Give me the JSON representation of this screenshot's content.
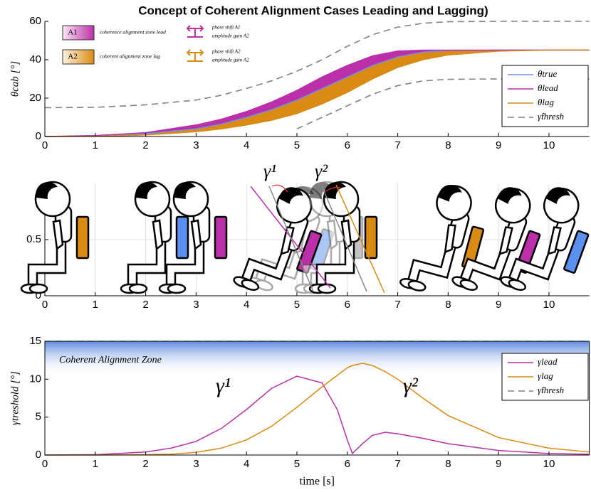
{
  "chart_data": [
    {
      "type": "line",
      "title": "Concept of Coherent Alignment Cases Leading and Lagging)",
      "ylabel": "θcab [°]",
      "x": [
        0,
        1,
        2,
        3,
        3.5,
        4,
        4.5,
        5,
        5.5,
        6,
        6.5,
        7,
        7.5,
        8,
        9,
        10,
        10.8
      ],
      "xlim": [
        0,
        10.8
      ],
      "ylim": [
        0,
        60
      ],
      "xticks": [
        0,
        1,
        2,
        3,
        4,
        5,
        6,
        7,
        8,
        9,
        10
      ],
      "yticks": [
        0,
        20,
        40,
        60
      ],
      "series": [
        {
          "name": "θtrue",
          "color": "#6f8ff0",
          "values": [
            0,
            0.3,
            1.5,
            4,
            6.5,
            10,
            14,
            19,
            25,
            31,
            37,
            41.5,
            44,
            44.8,
            45,
            45,
            45
          ]
        },
        {
          "name": "θlead",
          "color": "#bb2fa8",
          "values": [
            0,
            0.5,
            2,
            6,
            9,
            13,
            18,
            24,
            31,
            37,
            42,
            44.5,
            45,
            45,
            45,
            45,
            45
          ]
        },
        {
          "name": "θlag",
          "color": "#da8b14",
          "values": [
            0,
            0.1,
            0.8,
            2.5,
            4,
            6,
            8.5,
            12,
            17,
            23,
            30,
            36,
            40,
            42.5,
            44.5,
            45,
            45
          ]
        },
        {
          "name": "γ̂thresh",
          "color": "#808080",
          "dashed": true,
          "values": [
            15,
            15.2,
            16.5,
            19,
            21.5,
            25,
            29,
            34,
            40,
            47,
            53,
            57,
            59,
            59.8,
            60,
            60,
            60
          ],
          "values_lower": [
            null,
            null,
            null,
            null,
            null,
            null,
            null,
            4,
            10,
            16,
            22,
            26.5,
            29,
            29.8,
            30,
            30,
            30
          ]
        }
      ],
      "annotations": [
        "A1",
        "coherence alignment zone lead",
        "phase shift A1",
        "amplitude gain A2",
        "A2",
        "coherent alignment zone lag",
        "phase shift A2",
        "amplitude gain A2"
      ]
    },
    {
      "type": "figure",
      "xlim": [
        0,
        10.8
      ],
      "ylim": [
        0,
        1
      ],
      "xticks": [
        0,
        1,
        2,
        3,
        4,
        5,
        6,
        7,
        8,
        9,
        10
      ],
      "yticks": [
        0,
        0.5
      ],
      "grid": true,
      "annotations": [
        "γ¹",
        "γ²"
      ]
    },
    {
      "type": "line",
      "ylabel": "γtreshold [°]",
      "xlabel": "time [s]",
      "x": [
        0,
        1,
        2,
        2.5,
        3,
        3.5,
        4,
        4.5,
        5,
        5.5,
        5.8,
        6,
        6.1,
        6.3,
        6.5,
        6.75,
        7,
        7.5,
        8,
        9,
        10,
        10.8
      ],
      "xlim": [
        0,
        10.8
      ],
      "ylim": [
        0,
        15
      ],
      "xticks": [
        0,
        1,
        2,
        3,
        4,
        5,
        6,
        7,
        8,
        9,
        10
      ],
      "yticks": [
        0,
        5,
        10,
        15
      ],
      "series": [
        {
          "name": "γlead",
          "color": "#bb2fa8",
          "values": [
            0,
            0.05,
            0.4,
            0.9,
            1.8,
            3.5,
            6,
            8.8,
            10.4,
            9.5,
            6,
            2,
            0.2,
            1.5,
            2.6,
            3,
            2.8,
            2.2,
            1.5,
            0.6,
            0.2,
            0.1
          ]
        },
        {
          "name": "γlag",
          "color": "#da8b14",
          "values": [
            0,
            0,
            0.05,
            0.1,
            0.35,
            0.9,
            2,
            3.8,
            6.3,
            9,
            10.5,
            11.5,
            11.8,
            12.1,
            11.8,
            11,
            10,
            7.5,
            5.2,
            2.3,
            0.9,
            0.4
          ]
        },
        {
          "name": "γ̂thresh",
          "color": "#808080",
          "dashed": true,
          "values": [
            15,
            15,
            15,
            15,
            15,
            15,
            15,
            15,
            15,
            15,
            15,
            15,
            15,
            15,
            15,
            15,
            15,
            15,
            15,
            15,
            15,
            15
          ]
        }
      ],
      "annotations": [
        "Coherent Alignment Zone",
        "γ¹",
        "γ²"
      ]
    }
  ]
}
